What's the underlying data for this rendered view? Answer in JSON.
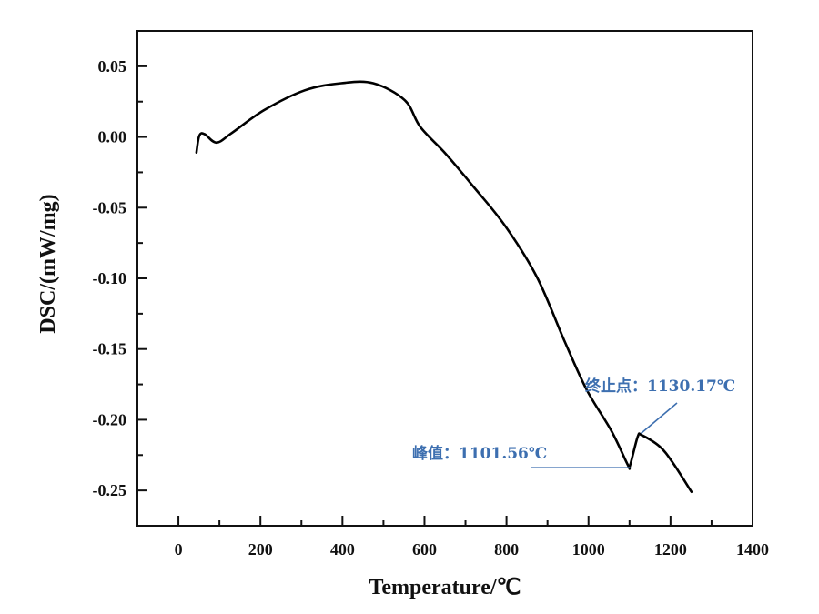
{
  "chart_data": {
    "type": "line",
    "title": "",
    "xlabel": "Temperature/℃",
    "ylabel": "DSC/(mW/mg)",
    "xlim": [
      -100,
      1400
    ],
    "ylim": [
      -0.275,
      0.075
    ],
    "xticks": [
      0,
      200,
      400,
      600,
      800,
      1000,
      1200,
      1400
    ],
    "xtick_labels": [
      "0",
      "200",
      "400",
      "600",
      "800",
      "1000",
      "1200",
      "1400"
    ],
    "yticks": [
      0.05,
      0.0,
      -0.05,
      -0.1,
      -0.15,
      -0.2,
      -0.25
    ],
    "ytick_labels": [
      "0.05",
      "0.00",
      "-0.05",
      "-0.10",
      "-0.15",
      "-0.20",
      "-0.25"
    ],
    "grid": false,
    "line_color": "#000000",
    "annotation_color": "#3d6fb0",
    "series": [
      {
        "name": "DSC",
        "x": [
          44,
          51,
          64,
          93,
          131,
          209,
          308,
          397,
          475,
          552,
          590,
          652,
          719,
          797,
          874,
          941,
          996,
          1056,
          1096,
          1101.56,
          1120,
          1130.17,
          1174,
          1207,
          1251
        ],
        "y": [
          -0.011,
          0.001,
          0.002,
          -0.004,
          0.003,
          0.019,
          0.033,
          0.038,
          0.038,
          0.026,
          0.007,
          -0.012,
          -0.035,
          -0.063,
          -0.099,
          -0.144,
          -0.179,
          -0.208,
          -0.232,
          -0.232,
          -0.212,
          -0.211,
          -0.219,
          -0.231,
          -0.251
        ]
      }
    ],
    "annotations": [
      {
        "name": "peak",
        "text": "峰值：1101.56℃",
        "x": 1101.56,
        "y": -0.232
      },
      {
        "name": "endpoint",
        "text": "终止点：1130.17℃",
        "x": 1130.17,
        "y": -0.211
      }
    ]
  }
}
